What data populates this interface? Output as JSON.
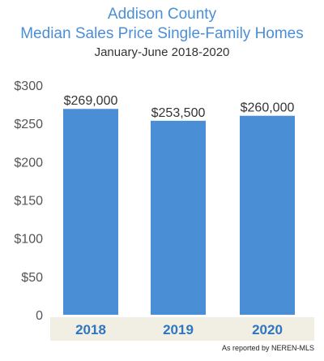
{
  "chart_data": {
    "type": "bar",
    "title": "Addison County",
    "subtitle": "Median Sales Price Single-Family Homes",
    "period": "January-June 2018-2020",
    "categories": [
      "2018",
      "2019",
      "2020"
    ],
    "values": [
      269000,
      253500,
      260000
    ],
    "data_labels": [
      "$269,000",
      "$253,500",
      "$260,000"
    ],
    "y_ticks": [
      0,
      50000,
      100000,
      150000,
      200000,
      250000,
      300000
    ],
    "y_tick_labels": [
      "0",
      "$50",
      "$100",
      "$150",
      "$200",
      "$250",
      "$300"
    ],
    "ylim": [
      0,
      300000
    ],
    "grid": false,
    "legend": "none",
    "xlabel": "",
    "ylabel": ""
  },
  "source_note": "As reported by NEREN-MLS",
  "colors": {
    "title": "#4a8fd6",
    "bar": "#4a8fd6",
    "category_band": "#f1eee3",
    "category_text": "#2e76bf",
    "axis_text": "#555555"
  }
}
